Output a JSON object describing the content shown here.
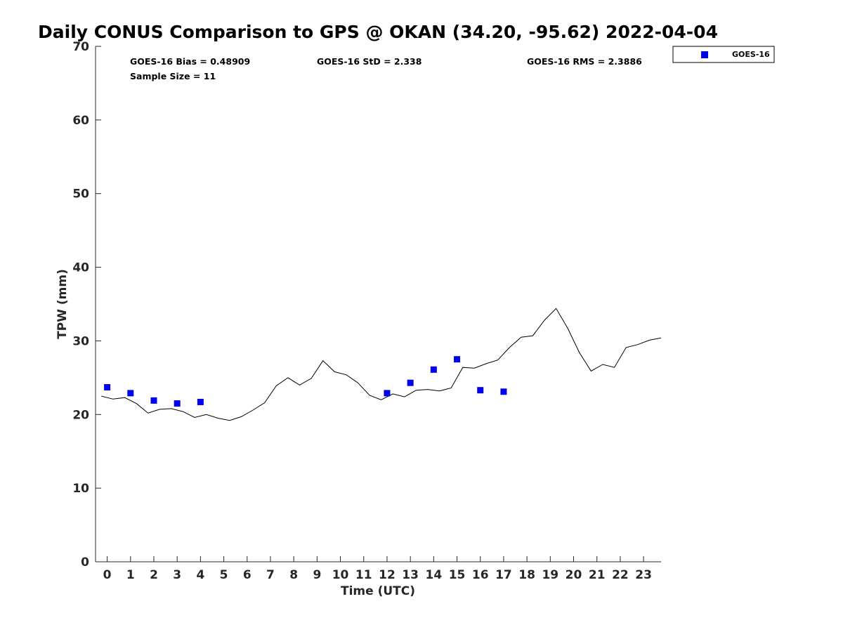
{
  "chart_data": {
    "type": "line",
    "title": "Daily CONUS Comparison to GPS @ OKAN (34.20, -95.62) 2022-04-04",
    "xlabel": "Time (UTC)",
    "ylabel": "TPW (mm)",
    "xlim": [
      -0.5,
      23.75
    ],
    "ylim": [
      0,
      70
    ],
    "xticks": [
      0,
      1,
      2,
      3,
      4,
      5,
      6,
      7,
      8,
      9,
      10,
      11,
      12,
      13,
      14,
      15,
      16,
      17,
      18,
      19,
      20,
      21,
      22,
      23
    ],
    "yticks": [
      0,
      10,
      20,
      30,
      40,
      50,
      60,
      70
    ],
    "grid": false,
    "legend_position": "top-right (outside plot)",
    "stats": {
      "bias": "GOES-16 Bias = 0.48909",
      "std": "GOES-16 StD = 2.338",
      "rms": "GOES-16 RMS = 2.3886",
      "sample": "Sample Size = 11"
    },
    "series": [
      {
        "kind": "line",
        "color": "#000000",
        "x": [
          -0.25,
          0.25,
          0.75,
          1.25,
          1.75,
          2.25,
          2.75,
          3.25,
          3.75,
          4.25,
          4.75,
          5.25,
          5.75,
          6.25,
          6.75,
          7.25,
          7.75,
          8.25,
          8.75,
          9.25,
          9.75,
          10.25,
          10.75,
          11.25,
          11.75,
          12.25,
          12.75,
          13.25,
          13.75,
          14.25,
          14.75,
          15.25,
          15.75,
          16.25,
          16.75,
          17.25,
          17.75,
          18.25,
          18.75,
          19.25,
          19.75,
          20.25,
          20.75,
          21.25,
          21.75,
          22.25,
          22.75,
          23.25,
          23.75
        ],
        "y": [
          22.5,
          22.1,
          22.3,
          21.5,
          20.2,
          20.7,
          20.8,
          20.4,
          19.6,
          20.0,
          19.5,
          19.2,
          19.7,
          20.6,
          21.6,
          23.9,
          25.0,
          24.0,
          24.9,
          27.3,
          25.8,
          25.4,
          24.3,
          22.6,
          22.0,
          22.8,
          22.4,
          23.3,
          23.4,
          23.2,
          23.6,
          26.4,
          26.3,
          26.9,
          27.4,
          29.1,
          30.5,
          30.7,
          32.8,
          34.4,
          31.7,
          28.4,
          25.9,
          26.8,
          26.4,
          29.1,
          29.5,
          30.1,
          30.4
        ]
      },
      {
        "name": "GOES-16",
        "kind": "scatter",
        "marker": "square",
        "color": "#0000ee",
        "x": [
          0,
          1,
          2,
          3,
          4,
          12,
          13,
          14,
          15,
          16,
          17
        ],
        "y": [
          23.7,
          22.9,
          21.9,
          21.5,
          21.7,
          22.9,
          24.3,
          26.1,
          27.5,
          23.3,
          23.1
        ]
      }
    ]
  }
}
